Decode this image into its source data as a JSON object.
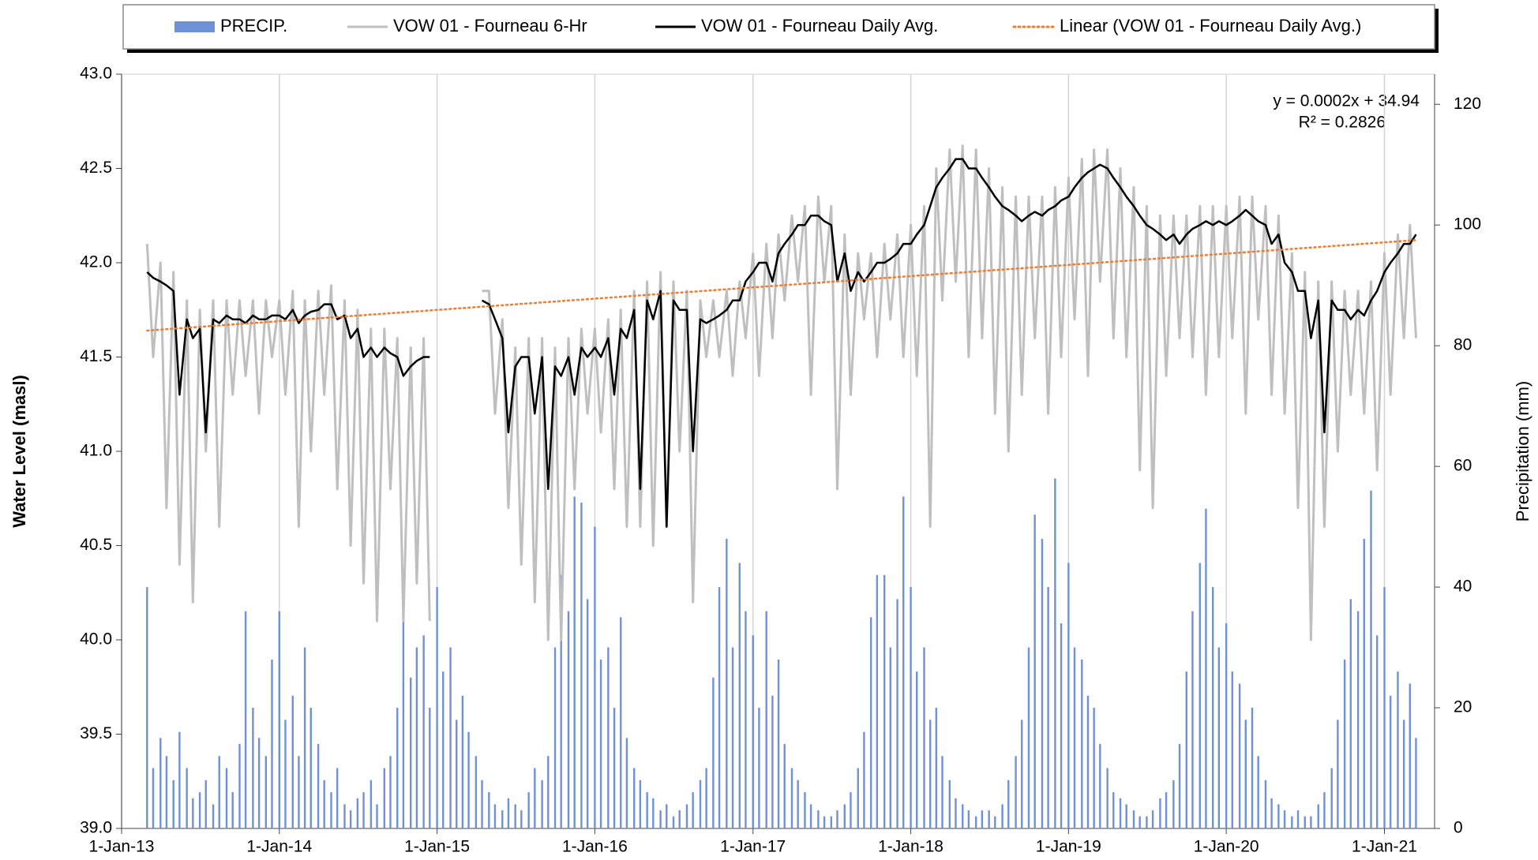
{
  "chart_data": {
    "type": "line",
    "ylabel": "Water Level (masl)",
    "y2label": "Precipitation (mm)",
    "annotations": [
      "y = 0.0002x + 34.94",
      "R² = 0.2826"
    ],
    "xlim": [
      "2013-01-01",
      "2021-04-27"
    ],
    "xticks": [
      {
        "value": "2013-01-01",
        "label": "1-Jan-13"
      },
      {
        "value": "2014-01-01",
        "label": "1-Jan-14"
      },
      {
        "value": "2015-01-01",
        "label": "1-Jan-15"
      },
      {
        "value": "2016-01-01",
        "label": "1-Jan-16"
      },
      {
        "value": "2017-01-01",
        "label": "1-Jan-17"
      },
      {
        "value": "2018-01-01",
        "label": "1-Jan-18"
      },
      {
        "value": "2019-01-01",
        "label": "1-Jan-19"
      },
      {
        "value": "2020-01-01",
        "label": "1-Jan-20"
      },
      {
        "value": "2021-01-01",
        "label": "1-Jan-21"
      }
    ],
    "ylim": [
      39,
      43
    ],
    "yticks": [
      {
        "value": 39,
        "label": "39.0"
      },
      39.5,
      {
        "value": 40,
        "label": "40.0"
      },
      40.5,
      {
        "value": 41,
        "label": "41.0"
      },
      41.5,
      {
        "value": 42,
        "label": "42.0"
      },
      42.5,
      {
        "value": 43,
        "label": "43.0"
      }
    ],
    "y2lim": [
      0,
      125
    ],
    "y2ticks": [
      0,
      20,
      40,
      60,
      80,
      100,
      120
    ],
    "xgrid": true,
    "legend": "top",
    "x": [
      "2013-03-01",
      "2013-03-15",
      "2013-04-01",
      "2013-04-15",
      "2013-05-01",
      "2013-05-15",
      "2013-06-01",
      "2013-06-15",
      "2013-07-01",
      "2013-07-15",
      "2013-08-01",
      "2013-08-15",
      "2013-09-01",
      "2013-09-15",
      "2013-10-01",
      "2013-10-15",
      "2013-11-01",
      "2013-11-15",
      "2013-12-01",
      "2013-12-15",
      "2014-01-01",
      "2014-01-15",
      "2014-02-01",
      "2014-02-15",
      "2014-03-01",
      "2014-03-15",
      "2014-04-01",
      "2014-04-15",
      "2014-05-01",
      "2014-05-15",
      "2014-06-01",
      "2014-06-15",
      "2014-07-01",
      "2014-07-15",
      "2014-08-01",
      "2014-08-15",
      "2014-09-01",
      "2014-09-15",
      "2014-10-01",
      "2014-10-15",
      "2014-11-01",
      "2014-11-15",
      "2014-12-01",
      "2014-12-15",
      "2015-01-01",
      "2015-01-15",
      "2015-02-01",
      "2015-02-15",
      "2015-03-01",
      "2015-03-15",
      "2015-04-01",
      "2015-04-15",
      "2015-05-01",
      "2015-05-15",
      "2015-06-01",
      "2015-06-15",
      "2015-07-01",
      "2015-07-15",
      "2015-08-01",
      "2015-08-15",
      "2015-09-01",
      "2015-09-15",
      "2015-10-01",
      "2015-10-15",
      "2015-11-01",
      "2015-11-15",
      "2015-12-01",
      "2015-12-15",
      "2016-01-01",
      "2016-01-15",
      "2016-02-01",
      "2016-02-15",
      "2016-03-01",
      "2016-03-15",
      "2016-04-01",
      "2016-04-15",
      "2016-05-01",
      "2016-05-15",
      "2016-06-01",
      "2016-06-15",
      "2016-07-01",
      "2016-07-15",
      "2016-08-01",
      "2016-08-15",
      "2016-09-01",
      "2016-09-15",
      "2016-10-01",
      "2016-10-15",
      "2016-11-01",
      "2016-11-15",
      "2016-12-01",
      "2016-12-15",
      "2017-01-01",
      "2017-01-15",
      "2017-02-01",
      "2017-02-15",
      "2017-03-01",
      "2017-03-15",
      "2017-04-01",
      "2017-04-15",
      "2017-05-01",
      "2017-05-15",
      "2017-06-01",
      "2017-06-15",
      "2017-07-01",
      "2017-07-15",
      "2017-08-01",
      "2017-08-15",
      "2017-09-01",
      "2017-09-15",
      "2017-10-01",
      "2017-10-15",
      "2017-11-01",
      "2017-11-15",
      "2017-12-01",
      "2017-12-15",
      "2018-01-01",
      "2018-01-15",
      "2018-02-01",
      "2018-02-15",
      "2018-03-01",
      "2018-03-15",
      "2018-04-01",
      "2018-04-15",
      "2018-05-01",
      "2018-05-15",
      "2018-06-01",
      "2018-06-15",
      "2018-07-01",
      "2018-07-15",
      "2018-08-01",
      "2018-08-15",
      "2018-09-01",
      "2018-09-15",
      "2018-10-01",
      "2018-10-15",
      "2018-11-01",
      "2018-11-15",
      "2018-12-01",
      "2018-12-15",
      "2019-01-01",
      "2019-01-15",
      "2019-02-01",
      "2019-02-15",
      "2019-03-01",
      "2019-03-15",
      "2019-04-01",
      "2019-04-15",
      "2019-05-01",
      "2019-05-15",
      "2019-06-01",
      "2019-06-15",
      "2019-07-01",
      "2019-07-15",
      "2019-08-01",
      "2019-08-15",
      "2019-09-01",
      "2019-09-15",
      "2019-10-01",
      "2019-10-15",
      "2019-11-01",
      "2019-11-15",
      "2019-12-01",
      "2019-12-15",
      "2020-01-01",
      "2020-01-15",
      "2020-02-01",
      "2020-02-15",
      "2020-03-01",
      "2020-03-15",
      "2020-04-01",
      "2020-04-15",
      "2020-05-01",
      "2020-05-15",
      "2020-06-01",
      "2020-06-15",
      "2020-07-01",
      "2020-07-15",
      "2020-08-01",
      "2020-08-15",
      "2020-09-01",
      "2020-09-15",
      "2020-10-01",
      "2020-10-15",
      "2020-11-01",
      "2020-11-15",
      "2020-12-01",
      "2020-12-15",
      "2021-01-01",
      "2021-01-15",
      "2021-02-01",
      "2021-02-15",
      "2021-03-01",
      "2021-03-15"
    ],
    "series": [
      {
        "name": "PRECIP.",
        "type": "bar",
        "axis": "y2",
        "color": "#6f91d8",
        "values": [
          40,
          10,
          15,
          12,
          8,
          16,
          10,
          5,
          6,
          8,
          4,
          12,
          10,
          6,
          14,
          36,
          20,
          15,
          12,
          28,
          36,
          18,
          22,
          12,
          30,
          20,
          14,
          8,
          6,
          10,
          4,
          3,
          5,
          6,
          8,
          4,
          10,
          12,
          20,
          36,
          25,
          30,
          32,
          20,
          40,
          26,
          30,
          18,
          22,
          16,
          12,
          8,
          6,
          4,
          3,
          5,
          4,
          3,
          6,
          10,
          8,
          12,
          30,
          42,
          36,
          55,
          54,
          38,
          50,
          28,
          30,
          20,
          35,
          15,
          10,
          8,
          6,
          5,
          3,
          4,
          2,
          3,
          4,
          6,
          8,
          10,
          25,
          40,
          48,
          30,
          44,
          36,
          32,
          20,
          36,
          22,
          28,
          14,
          10,
          8,
          6,
          4,
          3,
          2,
          2,
          3,
          4,
          6,
          10,
          16,
          35,
          42,
          42,
          30,
          38,
          55,
          40,
          26,
          30,
          18,
          20,
          12,
          8,
          5,
          4,
          3,
          2,
          3,
          3,
          2,
          4,
          8,
          12,
          18,
          30,
          52,
          48,
          40,
          58,
          34,
          44,
          30,
          28,
          22,
          20,
          14,
          10,
          6,
          5,
          4,
          3,
          2,
          2,
          3,
          5,
          6,
          8,
          14,
          26,
          36,
          44,
          53,
          40,
          30,
          34,
          26,
          24,
          18,
          20,
          12,
          8,
          5,
          4,
          3,
          2,
          3,
          2,
          2,
          4,
          6,
          10,
          18,
          28,
          38,
          36,
          48,
          56,
          32,
          40,
          22,
          26,
          18,
          24,
          15
        ]
      },
      {
        "name": "VOW 01 - Fourneau 6-Hr",
        "type": "line",
        "color": "#bfbfbf",
        "width": 3,
        "values": [
          42.1,
          41.5,
          42.0,
          40.7,
          41.95,
          40.4,
          41.8,
          40.2,
          41.75,
          41.0,
          41.8,
          40.6,
          41.8,
          41.3,
          41.8,
          41.4,
          41.8,
          41.2,
          41.8,
          41.5,
          41.8,
          41.3,
          41.85,
          40.6,
          41.8,
          41.0,
          41.85,
          41.3,
          41.88,
          40.8,
          41.8,
          40.5,
          41.75,
          40.3,
          41.65,
          40.1,
          41.65,
          40.8,
          41.6,
          40.1,
          41.55,
          40.3,
          41.6,
          40.1,
          null,
          null,
          null,
          null,
          null,
          null,
          null,
          41.85,
          41.85,
          41.2,
          41.7,
          40.7,
          41.55,
          40.4,
          41.6,
          40.2,
          41.6,
          40.0,
          41.55,
          40.0,
          41.6,
          40.8,
          41.65,
          41.2,
          41.65,
          41.1,
          41.7,
          40.8,
          41.75,
          40.6,
          41.85,
          40.6,
          41.9,
          40.5,
          41.95,
          40.6,
          41.9,
          41.0,
          41.85,
          40.2,
          41.8,
          41.5,
          41.8,
          41.5,
          41.85,
          41.4,
          41.9,
          41.6,
          42.05,
          41.4,
          42.1,
          41.6,
          42.15,
          41.8,
          42.25,
          41.9,
          42.3,
          41.3,
          42.35,
          41.9,
          42.3,
          40.8,
          42.15,
          41.3,
          42.05,
          41.7,
          42.05,
          41.5,
          42.1,
          41.7,
          42.15,
          41.5,
          42.2,
          41.4,
          42.3,
          40.6,
          42.5,
          41.8,
          42.6,
          41.9,
          42.62,
          41.5,
          42.6,
          41.6,
          42.5,
          41.2,
          42.4,
          41.0,
          42.35,
          41.3,
          42.35,
          41.6,
          42.35,
          41.2,
          42.4,
          41.5,
          42.45,
          41.7,
          42.55,
          41.4,
          42.6,
          41.9,
          42.6,
          41.6,
          42.5,
          41.5,
          42.4,
          40.9,
          42.3,
          40.7,
          42.25,
          41.4,
          42.25,
          41.6,
          42.25,
          41.5,
          42.3,
          41.3,
          42.3,
          41.5,
          42.3,
          41.6,
          42.35,
          41.2,
          42.35,
          41.7,
          42.3,
          41.3,
          42.25,
          41.2,
          42.05,
          40.7,
          41.95,
          40.0,
          41.9,
          40.6,
          41.9,
          41.0,
          41.85,
          41.3,
          41.85,
          41.2,
          41.9,
          40.9,
          42.05,
          41.3,
          42.15,
          41.6,
          42.2,
          41.6
        ]
      },
      {
        "name": "VOW 01 - Fourneau Daily Avg.",
        "type": "line",
        "color": "#000000",
        "width": 2.5,
        "values": [
          41.95,
          41.92,
          41.9,
          41.88,
          41.85,
          41.3,
          41.7,
          41.6,
          41.65,
          41.1,
          41.7,
          41.68,
          41.72,
          41.7,
          41.7,
          41.68,
          41.72,
          41.7,
          41.7,
          41.72,
          41.72,
          41.7,
          41.75,
          41.68,
          41.72,
          41.74,
          41.75,
          41.78,
          41.78,
          41.7,
          41.72,
          41.6,
          41.65,
          41.5,
          41.55,
          41.5,
          41.55,
          41.52,
          41.5,
          41.4,
          41.45,
          41.48,
          41.5,
          41.5,
          null,
          null,
          null,
          null,
          null,
          null,
          null,
          41.8,
          41.78,
          41.7,
          41.6,
          41.1,
          41.45,
          41.5,
          41.5,
          41.2,
          41.5,
          40.8,
          41.45,
          41.4,
          41.5,
          41.3,
          41.55,
          41.5,
          41.55,
          41.5,
          41.6,
          41.3,
          41.65,
          41.6,
          41.75,
          40.8,
          41.8,
          41.7,
          41.85,
          40.6,
          41.8,
          41.75,
          41.75,
          41.0,
          41.7,
          41.68,
          41.7,
          41.72,
          41.75,
          41.8,
          41.8,
          41.9,
          41.95,
          42.0,
          42.0,
          41.9,
          42.05,
          42.1,
          42.15,
          42.2,
          42.2,
          42.25,
          42.25,
          42.22,
          42.2,
          41.9,
          42.05,
          41.85,
          41.95,
          41.9,
          41.95,
          42.0,
          42.0,
          42.02,
          42.05,
          42.1,
          42.1,
          42.15,
          42.2,
          42.3,
          42.4,
          42.45,
          42.5,
          42.55,
          42.55,
          42.5,
          42.5,
          42.45,
          42.4,
          42.35,
          42.3,
          42.28,
          42.25,
          42.22,
          42.25,
          42.27,
          42.25,
          42.28,
          42.3,
          42.33,
          42.35,
          42.4,
          42.45,
          42.48,
          42.5,
          42.52,
          42.5,
          42.45,
          42.4,
          42.35,
          42.3,
          42.25,
          42.2,
          42.18,
          42.15,
          42.12,
          42.15,
          42.1,
          42.15,
          42.18,
          42.2,
          42.22,
          42.2,
          42.22,
          42.2,
          42.22,
          42.25,
          42.28,
          42.25,
          42.22,
          42.2,
          42.1,
          42.15,
          42.0,
          41.95,
          41.85,
          41.85,
          41.6,
          41.8,
          41.1,
          41.8,
          41.75,
          41.75,
          41.7,
          41.75,
          41.72,
          41.8,
          41.85,
          41.95,
          42.0,
          42.05,
          42.1,
          42.1,
          42.15
        ]
      },
      {
        "name": "Linear (VOW 01 - Fourneau Daily Avg.)",
        "type": "line",
        "color": "#ed7d31",
        "width": 2.5,
        "dash": "dotted",
        "x": [
          "2013-03-01",
          "2021-03-15"
        ],
        "values": [
          41.64,
          42.12
        ]
      }
    ]
  }
}
